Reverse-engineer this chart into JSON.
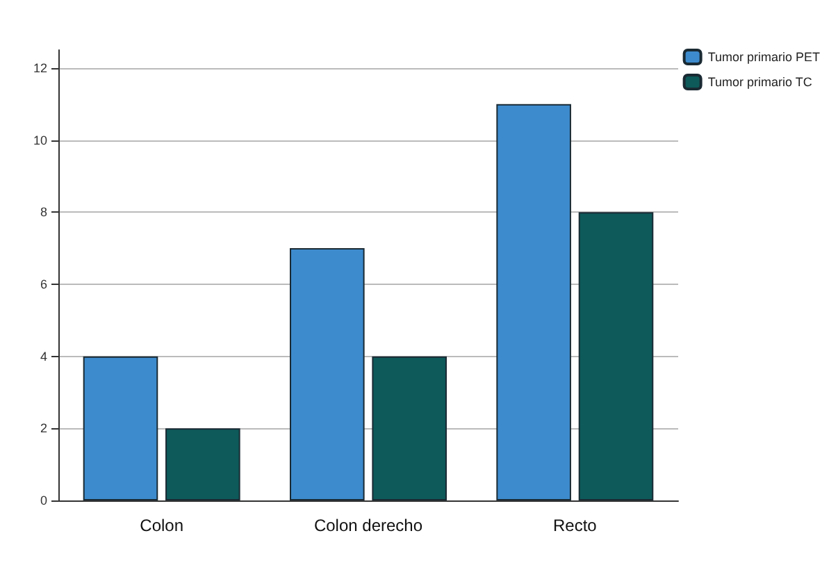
{
  "chart_data": {
    "type": "bar",
    "categories": [
      "Colon",
      "Colon derecho",
      "Recto"
    ],
    "series": [
      {
        "name": "Tumor primario PET",
        "color": "#3d8bcd",
        "values": [
          4,
          7,
          11
        ]
      },
      {
        "name": "Tumor primario TC",
        "color": "#0e5a5a",
        "values": [
          2,
          4,
          8
        ]
      }
    ],
    "ylim": [
      0,
      12.5
    ],
    "yticks": [
      0,
      2,
      4,
      6,
      8,
      10,
      12
    ],
    "grid": "y",
    "legend": "top right"
  }
}
